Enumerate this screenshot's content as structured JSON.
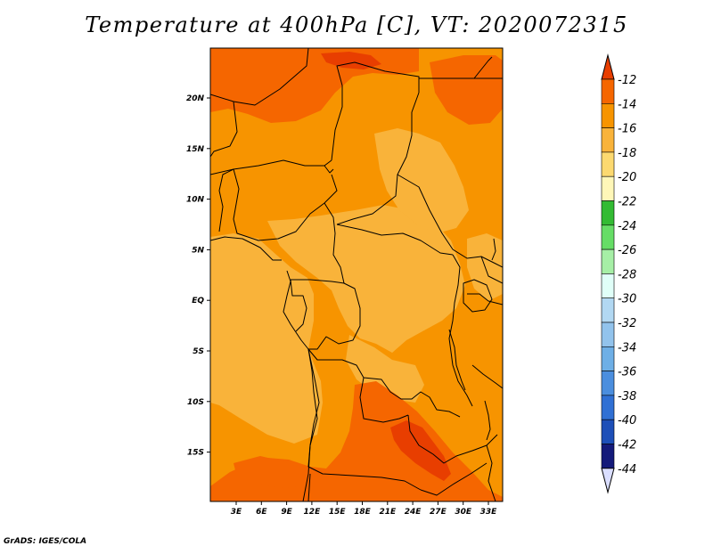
{
  "title": "Temperature at 400hPa [C], VT: 2020072315",
  "footer": "GrADS: IGES/COLA",
  "map": {
    "lon_labels": [
      "3E",
      "6E",
      "9E",
      "12E",
      "15E",
      "18E",
      "21E",
      "24E",
      "27E",
      "30E",
      "33E"
    ],
    "lat_labels": [
      "20N",
      "15N",
      "10N",
      "5N",
      "EQ",
      "5S",
      "10S",
      "15S"
    ]
  },
  "colorbar": {
    "levels": [
      "-12",
      "-14",
      "-16",
      "-18",
      "-20",
      "-22",
      "-24",
      "-26",
      "-28",
      "-30",
      "-32",
      "-34",
      "-36",
      "-38",
      "-40",
      "-42",
      "-44"
    ],
    "colors": [
      "#e83e00",
      "#f56600",
      "#f79400",
      "#f9b33a",
      "#fcd970",
      "#fff7b8",
      "#33bb33",
      "#66dd66",
      "#a6efa6",
      "#e0fff8",
      "#b2d8f2",
      "#92c3ec",
      "#6eafe6",
      "#4b8ede",
      "#3070d4",
      "#1d4fb8",
      "#141a7a",
      "#dadeff"
    ]
  },
  "field_colors": {
    "lt_m16_m18": "#f9b33a",
    "m14_m16": "#f79400",
    "m12_m14": "#f56600",
    "gt_m12": "#e83e00"
  }
}
